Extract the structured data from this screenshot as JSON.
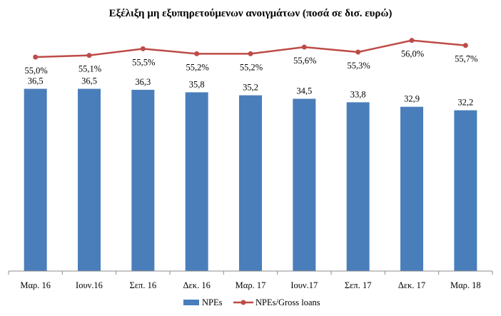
{
  "chart_data": {
    "type": "bar",
    "title": "Εξέλιξη μη εξυπηρετούμενων ανοιγμάτων (ποσά σε δισ. ευρώ)",
    "categories": [
      "Μαρ. 16",
      "Ιουν.16",
      "Σεπ. 16",
      "Δεκ. 16",
      "Μαρ. 17",
      "Ιουν.17",
      "Σεπ. 17",
      "Δεκ. 17",
      "Μαρ. 18"
    ],
    "series": [
      {
        "name": "NPEs",
        "type": "bar",
        "color": "#4a7ebb",
        "values": [
          36.5,
          36.5,
          36.3,
          35.8,
          35.2,
          34.5,
          33.8,
          32.9,
          32.2
        ],
        "labels": [
          "36,5",
          "36,5",
          "36,3",
          "35,8",
          "35,2",
          "34,5",
          "33,8",
          "32,9",
          "32,2"
        ]
      },
      {
        "name": "NPEs/Gross loans",
        "type": "line",
        "color": "#be4b48",
        "values": [
          55.0,
          55.1,
          55.5,
          55.2,
          55.2,
          55.6,
          55.3,
          56.0,
          55.7
        ],
        "labels": [
          "55,0%",
          "55,1%",
          "55,5%",
          "55,2%",
          "55,2%",
          "55,6%",
          "55,3%",
          "56,0%",
          "55,7%"
        ]
      }
    ],
    "ylim": [
      0,
      40
    ],
    "y2lim": [
      53.5,
      56.5
    ],
    "grid": false,
    "legend": "bottom"
  }
}
